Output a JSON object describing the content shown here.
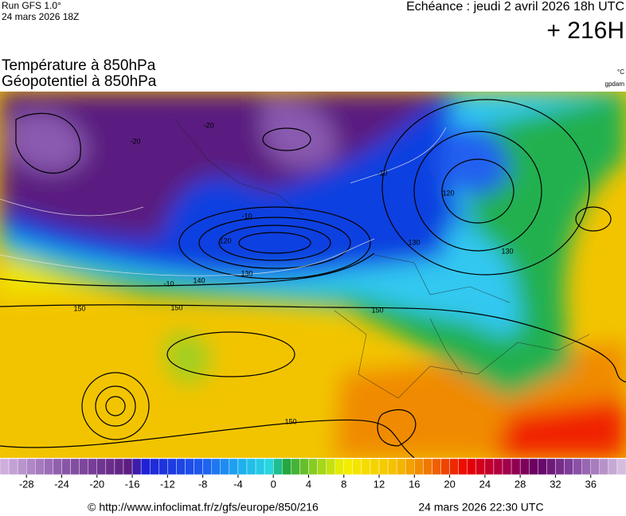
{
  "header": {
    "run": "Run GFS 1.0°",
    "run_date": "24 mars 2026 18Z",
    "echeance": "Echéance : jeudi 2 avril 2026 18h UTC",
    "horizon": "+ 216H",
    "title_temp": "Température à 850hPa",
    "title_geo": "Géopotentiel à 850hPa",
    "unit_temp": "°C",
    "unit_geo": "gpdam"
  },
  "colorbar": {
    "lim": [
      -31,
      40
    ],
    "ticks": [
      -28,
      -24,
      -20,
      -16,
      -12,
      -8,
      -4,
      0,
      4,
      8,
      12,
      16,
      20,
      24,
      28,
      32,
      36
    ]
  },
  "contour_labels": [
    150,
    150,
    150,
    150,
    140,
    130,
    130,
    130,
    120,
    120,
    -10,
    -10,
    -10,
    -20,
    -20
  ],
  "footer": {
    "url": "© http://www.infoclimat.fr/z/gfs/europe/850/216",
    "date": "24 mars 2026 22:30 UTC"
  }
}
